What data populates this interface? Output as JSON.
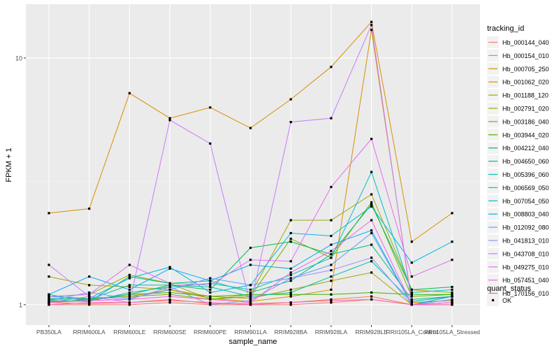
{
  "chart_data": {
    "type": "line",
    "title": "",
    "xlabel": "sample_name",
    "ylabel": "FPKM + 1",
    "y_scale": "log10",
    "ylim": [
      0.93,
      14.5
    ],
    "y_ticks": [
      1,
      10
    ],
    "grid": true,
    "legend_position": "right",
    "categories": [
      "PB350LA",
      "RRIM600LA",
      "RRIM600LE",
      "RRIM600SE",
      "RRIM600PE",
      "RRIM901LA",
      "RRIM928BA",
      "RRIM928LA",
      "RRIM928LE",
      "RRII105LA_Control",
      "RRII105LA_Stressed"
    ],
    "legend_title": "tracking_id",
    "series": [
      {
        "name": "Hb_000144_040",
        "color": "#F8766D",
        "values": [
          1.0,
          1.0,
          1.0,
          1.02,
          1.0,
          1.0,
          1.0,
          1.02,
          1.05,
          1.0,
          1.0
        ]
      },
      {
        "name": "Hb_000154_010",
        "color": "#EE8044",
        "values": [
          1.02,
          1.01,
          1.02,
          1.05,
          1.01,
          1.01,
          1.02,
          1.05,
          1.08,
          1.0,
          1.02
        ]
      },
      {
        "name": "Hb_000705_250",
        "color": "#D89000",
        "values": [
          2.35,
          2.45,
          7.2,
          5.7,
          6.3,
          5.2,
          6.8,
          9.2,
          14.0,
          1.8,
          2.35
        ]
      },
      {
        "name": "Hb_001062_020",
        "color": "#D89000",
        "values": [
          1.05,
          1.06,
          1.08,
          1.15,
          1.06,
          1.03,
          1.08,
          1.15,
          13.0,
          1.02,
          1.04
        ]
      },
      {
        "name": "Hb_001188_120",
        "color": "#A3A500",
        "values": [
          1.3,
          1.2,
          1.18,
          1.15,
          1.08,
          1.06,
          1.15,
          1.25,
          1.35,
          1.0,
          1.05
        ]
      },
      {
        "name": "Hb_002791_020",
        "color": "#9FA900",
        "values": [
          1.08,
          1.1,
          1.32,
          1.22,
          1.05,
          1.1,
          2.2,
          2.2,
          2.8,
          1.15,
          1.12
        ]
      },
      {
        "name": "Hb_003186_040",
        "color": "#72B000",
        "values": [
          1.05,
          1.06,
          1.08,
          1.1,
          1.05,
          1.08,
          1.85,
          1.55,
          2.6,
          1.08,
          1.1
        ]
      },
      {
        "name": "Hb_003944_020",
        "color": "#39B600",
        "values": [
          1.03,
          1.04,
          1.1,
          1.12,
          1.08,
          1.1,
          1.1,
          1.1,
          1.12,
          1.1,
          1.1
        ]
      },
      {
        "name": "Hb_004212_040",
        "color": "#00BB4E",
        "values": [
          1.02,
          1.05,
          1.1,
          1.2,
          1.15,
          1.7,
          1.8,
          1.6,
          2.55,
          1.15,
          1.18
        ]
      },
      {
        "name": "Hb_004650_060",
        "color": "#00BF7D",
        "values": [
          1.04,
          1.03,
          1.3,
          1.22,
          1.25,
          1.12,
          1.25,
          1.6,
          1.75,
          1.05,
          1.08
        ]
      },
      {
        "name": "Hb_005396_060",
        "color": "#00C1A3",
        "values": [
          1.06,
          1.05,
          1.2,
          1.2,
          1.18,
          1.08,
          1.12,
          1.3,
          1.5,
          1.03,
          1.08
        ]
      },
      {
        "name": "Hb_006569_050",
        "color": "#00BFC4",
        "values": [
          1.1,
          1.03,
          1.12,
          1.18,
          1.22,
          1.15,
          1.32,
          1.55,
          3.45,
          1.12,
          1.15
        ]
      },
      {
        "name": "Hb_007054_050",
        "color": "#00B9E3",
        "values": [
          1.08,
          1.06,
          1.28,
          1.42,
          1.12,
          1.2,
          1.95,
          1.9,
          2.5,
          1.48,
          1.8
        ]
      },
      {
        "name": "Hb_008803_040",
        "color": "#00ABFD",
        "values": [
          1.1,
          1.3,
          1.15,
          1.4,
          1.25,
          1.45,
          1.4,
          1.75,
          2.0,
          1.0,
          1.08
        ]
      },
      {
        "name": "Hb_012092_080",
        "color": "#619CFF",
        "values": [
          1.04,
          1.12,
          1.06,
          1.15,
          1.28,
          1.2,
          1.28,
          1.45,
          1.95,
          1.0,
          1.05
        ]
      },
      {
        "name": "Hb_041813_010",
        "color": "#9590FF",
        "values": [
          1.02,
          1.08,
          1.05,
          1.18,
          1.0,
          1.04,
          1.28,
          1.38,
          1.55,
          1.0,
          1.02
        ]
      },
      {
        "name": "Hb_043708_010",
        "color": "#C77CFF",
        "values": [
          1.45,
          1.08,
          1.02,
          5.6,
          4.5,
          1.0,
          5.5,
          5.7,
          13.6,
          1.0,
          1.02
        ]
      },
      {
        "name": "Hb_049275_010",
        "color": "#E76BF3",
        "values": [
          1.08,
          1.1,
          1.45,
          1.22,
          1.2,
          1.52,
          1.5,
          3.0,
          4.7,
          1.3,
          1.52
        ]
      },
      {
        "name": "Hb_057451_040",
        "color": "#FA62DB",
        "values": [
          1.02,
          1.04,
          1.05,
          1.08,
          1.05,
          1.02,
          1.35,
          1.65,
          2.2,
          1.0,
          1.02
        ]
      },
      {
        "name": "Hb_170156_010",
        "color": "#FF62BC",
        "values": [
          1.0,
          1.02,
          1.02,
          1.04,
          1.02,
          1.0,
          1.02,
          1.04,
          1.05,
          1.0,
          1.0
        ]
      }
    ],
    "quant_status_legend": {
      "title": "quant_status",
      "entries": [
        "OK"
      ]
    }
  }
}
